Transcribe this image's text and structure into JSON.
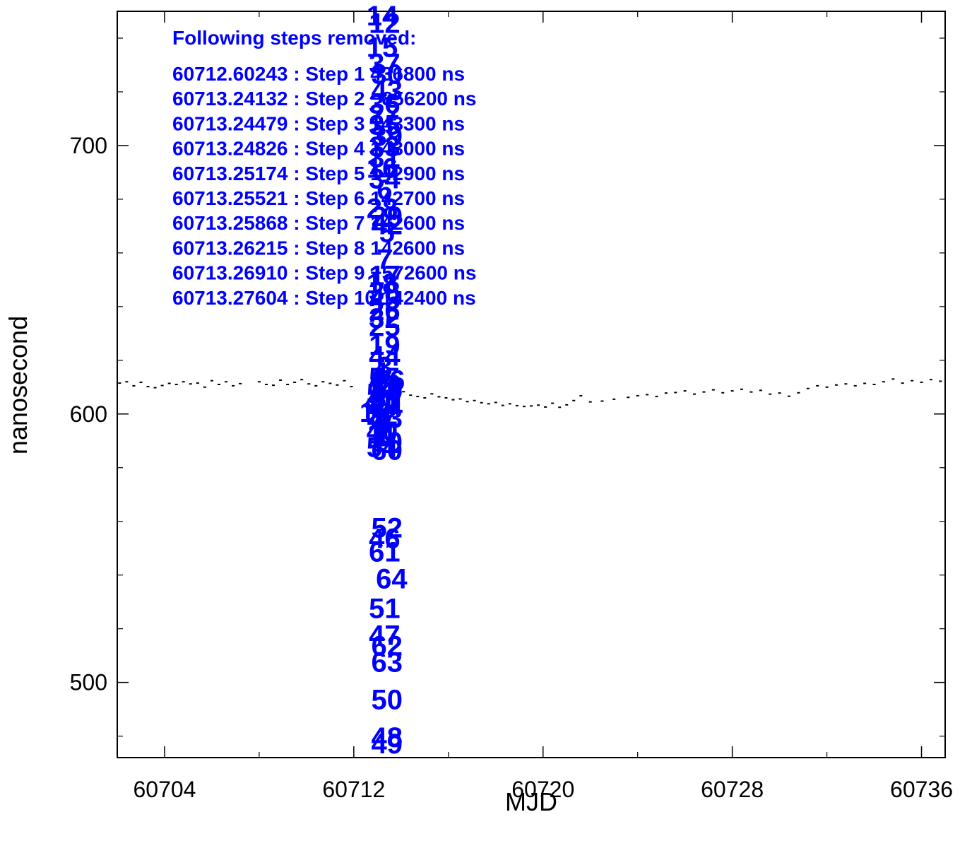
{
  "chart_data": {
    "type": "scatter",
    "title": "",
    "xlabel": "MJD",
    "ylabel": "nanosecond",
    "xlim": [
      60702,
      60737
    ],
    "ylim": [
      472,
      750
    ],
    "x_ticks": [
      60704,
      60712,
      60720,
      60728,
      60736
    ],
    "x_tick_labels": [
      "60704",
      "60712",
      "60720",
      "60728",
      "60736"
    ],
    "y_ticks": [
      500,
      600,
      700
    ],
    "y_tick_labels": [
      "500",
      "600",
      "700"
    ],
    "grid": false,
    "legend": "none",
    "colors": {
      "points": "#000000",
      "annotations": "#0000ff"
    },
    "annotation_header": "Following steps removed:",
    "annotation_lines": [
      "60712.60243 : Step 1 436800 ns",
      "60713.24132 : Step 2 −856200 ns",
      "60713.24479 : Step 3 143300 ns",
      "60713.24826 : Step 4 143000 ns",
      "60713.25174 : Step 5 142900 ns",
      "60713.25521 : Step 6 142700 ns",
      "60713.25868 : Step 7 142600 ns",
      "60713.26215 : Step 8 142600 ns",
      "60713.26910 : Step 9 −572600 ns",
      "60713.27604 : Step 10 142400 ns"
    ],
    "step_markers": [
      {
        "label": "14",
        "x": 60713.2,
        "y": 748
      },
      {
        "label": "12",
        "x": 60713.3,
        "y": 742
      },
      {
        "label": "15",
        "x": 60713.2,
        "y": 733
      },
      {
        "label": "37",
        "x": 60713.3,
        "y": 727
      },
      {
        "label": "30",
        "x": 60713.4,
        "y": 723
      },
      {
        "label": "43",
        "x": 60713.4,
        "y": 717
      },
      {
        "label": "36",
        "x": 60713.3,
        "y": 712
      },
      {
        "label": "27",
        "x": 60713.3,
        "y": 708
      },
      {
        "label": "35",
        "x": 60713.3,
        "y": 704
      },
      {
        "label": "39",
        "x": 60713.4,
        "y": 700
      },
      {
        "label": "33",
        "x": 60713.3,
        "y": 696
      },
      {
        "label": "31",
        "x": 60713.3,
        "y": 692
      },
      {
        "label": "16",
        "x": 60713.2,
        "y": 688
      },
      {
        "label": "34",
        "x": 60713.3,
        "y": 684
      },
      {
        "label": "6",
        "x": 60713.3,
        "y": 680
      },
      {
        "label": "28",
        "x": 60713.2,
        "y": 673
      },
      {
        "label": "29",
        "x": 60713.4,
        "y": 670
      },
      {
        "label": "42",
        "x": 60713.4,
        "y": 667
      },
      {
        "label": "5",
        "x": 60713.4,
        "y": 664
      },
      {
        "label": "7",
        "x": 60713.3,
        "y": 654
      },
      {
        "label": "17",
        "x": 60713.3,
        "y": 648
      },
      {
        "label": "18",
        "x": 60713.2,
        "y": 645
      },
      {
        "label": "38",
        "x": 60713.3,
        "y": 642
      },
      {
        "label": "45",
        "x": 60713.3,
        "y": 639
      },
      {
        "label": "26",
        "x": 60713.3,
        "y": 635
      },
      {
        "label": "32",
        "x": 60713.3,
        "y": 632
      },
      {
        "label": "25",
        "x": 60713.3,
        "y": 629
      },
      {
        "label": "19",
        "x": 60713.3,
        "y": 622
      },
      {
        "label": "44",
        "x": 60713.3,
        "y": 618
      },
      {
        "label": "3",
        "x": 60713.3,
        "y": 614
      },
      {
        "label": "4",
        "x": 60713.1,
        "y": 612
      },
      {
        "label": "55",
        "x": 60713.3,
        "y": 610
      },
      {
        "label": "56",
        "x": 60713.5,
        "y": 609
      },
      {
        "label": "53",
        "x": 60713.3,
        "y": 607
      },
      {
        "label": "58",
        "x": 60713.4,
        "y": 606
      },
      {
        "label": "59",
        "x": 60713.4,
        "y": 605
      },
      {
        "label": "57",
        "x": 60713.2,
        "y": 604
      },
      {
        "label": "20",
        "x": 60713.3,
        "y": 602
      },
      {
        "label": "41",
        "x": 60713.1,
        "y": 601
      },
      {
        "label": "21",
        "x": 60713.3,
        "y": 600
      },
      {
        "label": "24",
        "x": 60713.4,
        "y": 599
      },
      {
        "label": "13",
        "x": 60712.9,
        "y": 597
      },
      {
        "label": "22",
        "x": 60713.2,
        "y": 596
      },
      {
        "label": "23",
        "x": 60713.4,
        "y": 595
      },
      {
        "label": "2",
        "x": 60713.2,
        "y": 594
      },
      {
        "label": "8",
        "x": 60713.3,
        "y": 593
      },
      {
        "label": "9",
        "x": 60713.2,
        "y": 592
      },
      {
        "label": "40",
        "x": 60713.2,
        "y": 590
      },
      {
        "label": "11",
        "x": 60713.2,
        "y": 589
      },
      {
        "label": "1",
        "x": 60713.2,
        "y": 588
      },
      {
        "label": "10",
        "x": 60713.4,
        "y": 586
      },
      {
        "label": "54",
        "x": 60713.2,
        "y": 584
      },
      {
        "label": "60",
        "x": 60713.4,
        "y": 583
      },
      {
        "label": "52",
        "x": 60713.4,
        "y": 554
      },
      {
        "label": "46",
        "x": 60713.3,
        "y": 550
      },
      {
        "label": "61",
        "x": 60713.3,
        "y": 545
      },
      {
        "label": "64",
        "x": 60713.6,
        "y": 535
      },
      {
        "label": "51",
        "x": 60713.3,
        "y": 524
      },
      {
        "label": "47",
        "x": 60713.3,
        "y": 514
      },
      {
        "label": "62",
        "x": 60713.4,
        "y": 510
      },
      {
        "label": "63",
        "x": 60713.4,
        "y": 504
      },
      {
        "label": "50",
        "x": 60713.4,
        "y": 490
      },
      {
        "label": "48",
        "x": 60713.4,
        "y": 476
      },
      {
        "label": "49",
        "x": 60713.4,
        "y": 463
      }
    ],
    "series": [
      {
        "values_xy": [
          [
            60702.1,
            611.5
          ],
          [
            60702.4,
            612.0
          ],
          [
            60702.7,
            610.5
          ],
          [
            60703.0,
            611.8
          ],
          [
            60703.3,
            610.2
          ],
          [
            60703.6,
            609.8
          ],
          [
            60703.9,
            610.6
          ],
          [
            60704.2,
            611.4
          ],
          [
            60704.5,
            611.0
          ],
          [
            60704.8,
            612.0
          ],
          [
            60705.1,
            611.2
          ],
          [
            60705.4,
            611.5
          ],
          [
            60705.7,
            610.0
          ],
          [
            60706.0,
            612.4
          ],
          [
            60706.3,
            611.0
          ],
          [
            60706.6,
            612.0
          ],
          [
            60706.9,
            610.5
          ],
          [
            60707.2,
            611.3
          ],
          [
            60708.0,
            612.0
          ],
          [
            60708.3,
            611.0
          ],
          [
            60708.6,
            610.7
          ],
          [
            60708.9,
            612.6
          ],
          [
            60709.2,
            611.0
          ],
          [
            60709.5,
            611.8
          ],
          [
            60709.8,
            612.8
          ],
          [
            60710.1,
            611.2
          ],
          [
            60710.4,
            610.5
          ],
          [
            60710.7,
            612.0
          ],
          [
            60711.0,
            611.4
          ],
          [
            60711.3,
            610.8
          ],
          [
            60711.6,
            612.4
          ],
          [
            60711.9,
            610.2
          ],
          [
            60713.8,
            609.5
          ],
          [
            60714.1,
            608.3
          ],
          [
            60714.4,
            607.0
          ],
          [
            60714.7,
            606.5
          ],
          [
            60715.0,
            606.0
          ],
          [
            60715.3,
            607.5
          ],
          [
            60715.6,
            606.4
          ],
          [
            60715.9,
            606.0
          ],
          [
            60716.2,
            605.3
          ],
          [
            60716.5,
            605.6
          ],
          [
            60716.8,
            604.6
          ],
          [
            60717.1,
            605.0
          ],
          [
            60717.4,
            604.2
          ],
          [
            60717.7,
            603.8
          ],
          [
            60718.0,
            604.3
          ],
          [
            60718.3,
            603.2
          ],
          [
            60718.6,
            603.8
          ],
          [
            60718.9,
            603.1
          ],
          [
            60719.2,
            602.8
          ],
          [
            60719.5,
            603.0
          ],
          [
            60719.8,
            603.3
          ],
          [
            60720.1,
            602.6
          ],
          [
            60720.4,
            604.0
          ],
          [
            60720.7,
            602.5
          ],
          [
            60721.0,
            603.4
          ],
          [
            60721.3,
            605.0
          ],
          [
            60721.6,
            606.8
          ],
          [
            60722.0,
            604.5
          ],
          [
            60722.5,
            604.8
          ],
          [
            60723.0,
            605.5
          ],
          [
            60723.6,
            606.2
          ],
          [
            60724.0,
            606.8
          ],
          [
            60724.4,
            607.2
          ],
          [
            60724.8,
            606.5
          ],
          [
            60725.2,
            607.8
          ],
          [
            60725.6,
            608.0
          ],
          [
            60726.0,
            608.6
          ],
          [
            60726.4,
            607.4
          ],
          [
            60726.8,
            608.2
          ],
          [
            60727.2,
            609.0
          ],
          [
            60727.6,
            607.9
          ],
          [
            60728.0,
            608.6
          ],
          [
            60728.4,
            609.2
          ],
          [
            60728.8,
            608.2
          ],
          [
            60729.2,
            608.8
          ],
          [
            60729.6,
            607.4
          ],
          [
            60730.0,
            607.8
          ],
          [
            60730.4,
            606.6
          ],
          [
            60730.8,
            607.9
          ],
          [
            60731.2,
            609.5
          ],
          [
            60731.6,
            610.5
          ],
          [
            60732.0,
            610.0
          ],
          [
            60732.4,
            610.8
          ],
          [
            60732.8,
            611.2
          ],
          [
            60733.2,
            610.5
          ],
          [
            60733.6,
            611.4
          ],
          [
            60734.0,
            611.0
          ],
          [
            60734.4,
            612.0
          ],
          [
            60734.8,
            613.0
          ],
          [
            60735.2,
            611.5
          ],
          [
            60735.6,
            612.4
          ],
          [
            60736.0,
            611.8
          ],
          [
            60736.4,
            612.8
          ],
          [
            60736.8,
            612.2
          ]
        ]
      }
    ]
  }
}
